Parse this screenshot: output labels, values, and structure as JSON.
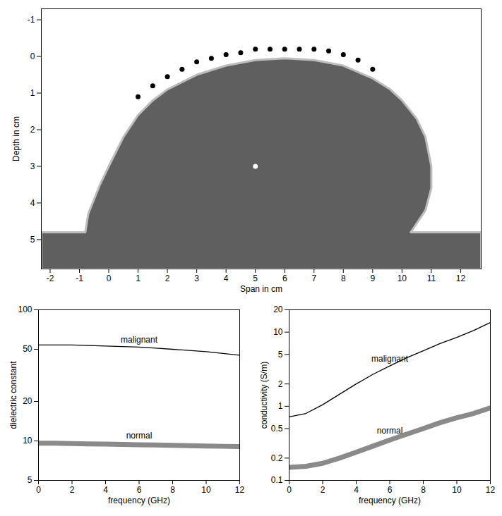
{
  "chart_data": [
    {
      "type": "scatter",
      "xlabel": "Span in cm",
      "ylabel": "Depth in cm",
      "xlim": [
        -2.3,
        12.7
      ],
      "xticks": [
        -2,
        -1,
        0,
        1,
        2,
        3,
        4,
        5,
        6,
        7,
        8,
        9,
        10,
        11,
        12
      ],
      "ylim": [
        5.8,
        -1.3
      ],
      "yticks": [
        -1,
        0,
        1,
        2,
        3,
        4,
        5
      ],
      "grid": false,
      "series": [
        {
          "type": "area",
          "color": "#5f5f5f",
          "x": [
            -2.3,
            -2.3,
            -0.8,
            -0.7,
            -0.3,
            0,
            0.5,
            1,
            1.5,
            2,
            3,
            4,
            5,
            6,
            7,
            8,
            9,
            9.6,
            10,
            10.5,
            10.8,
            11,
            11,
            10.8,
            10.3,
            12.7,
            12.7
          ],
          "values": [
            5.8,
            4.8,
            4.8,
            4.3,
            3.5,
            3.0,
            2.2,
            1.6,
            1.2,
            0.9,
            0.5,
            0.25,
            0.1,
            0.05,
            0.1,
            0.25,
            0.6,
            0.9,
            1.2,
            1.7,
            2.2,
            3.0,
            3.6,
            4.2,
            4.8,
            4.8,
            5.8
          ]
        },
        {
          "type": "scatter",
          "color": "#000000",
          "x": [
            1,
            1.5,
            2,
            2.5,
            3,
            3.5,
            4,
            4.5,
            5,
            5.5,
            6,
            6.5,
            7,
            7.5,
            8,
            8.5,
            9
          ],
          "values": [
            1.1,
            0.8,
            0.55,
            0.35,
            0.15,
            0.05,
            -0.05,
            -0.1,
            -0.2,
            -0.2,
            -0.2,
            -0.2,
            -0.2,
            -0.15,
            -0.05,
            0.1,
            0.35
          ]
        },
        {
          "type": "scatter",
          "color": "#ffffff",
          "x": [
            5
          ],
          "values": [
            3
          ]
        }
      ]
    },
    {
      "type": "line",
      "xlabel": "frequency (GHz)",
      "ylabel": "dielectric constant",
      "log": "y",
      "xlim": [
        0,
        12
      ],
      "xticks": [
        0,
        2,
        4,
        6,
        8,
        10,
        12
      ],
      "ylim": [
        5,
        100
      ],
      "yticks": [
        5,
        10,
        20,
        50,
        100
      ],
      "grid": false,
      "x": [
        0,
        1,
        2,
        3,
        4,
        5,
        6,
        7,
        8,
        9,
        10,
        11,
        12
      ],
      "series": [
        {
          "name": "malignant",
          "color": "#000000",
          "line_style": "solid",
          "values": [
            54,
            54,
            54,
            53.5,
            53,
            52.5,
            52,
            51,
            50,
            49,
            48,
            46.5,
            45
          ]
        },
        {
          "name": "normal",
          "color": "#8a8a8a",
          "line_style": "thick",
          "values": [
            9.6,
            9.6,
            9.55,
            9.5,
            9.45,
            9.4,
            9.35,
            9.3,
            9.25,
            9.2,
            9.15,
            9.1,
            9.05
          ]
        }
      ]
    },
    {
      "type": "line",
      "xlabel": "frequency (GHz)",
      "ylabel": "conductivity (S/m)",
      "log": "y",
      "xlim": [
        0,
        12
      ],
      "xticks": [
        0,
        2,
        4,
        6,
        8,
        10,
        12
      ],
      "ylim": [
        0.1,
        20
      ],
      "yticks": [
        0.1,
        0.2,
        0.5,
        1,
        2,
        5,
        10,
        20
      ],
      "grid": false,
      "x": [
        0,
        1,
        2,
        3,
        4,
        5,
        6,
        7,
        8,
        9,
        10,
        11,
        12
      ],
      "series": [
        {
          "name": "malignant",
          "color": "#000000",
          "line_style": "solid",
          "values": [
            0.72,
            0.8,
            1.05,
            1.45,
            2.0,
            2.7,
            3.5,
            4.5,
            5.6,
            7,
            8.5,
            10.5,
            13.5
          ]
        },
        {
          "name": "normal",
          "color": "#8a8a8a",
          "line_style": "thick",
          "values": [
            0.15,
            0.155,
            0.17,
            0.2,
            0.24,
            0.29,
            0.35,
            0.42,
            0.5,
            0.6,
            0.7,
            0.8,
            0.95
          ]
        }
      ]
    }
  ]
}
